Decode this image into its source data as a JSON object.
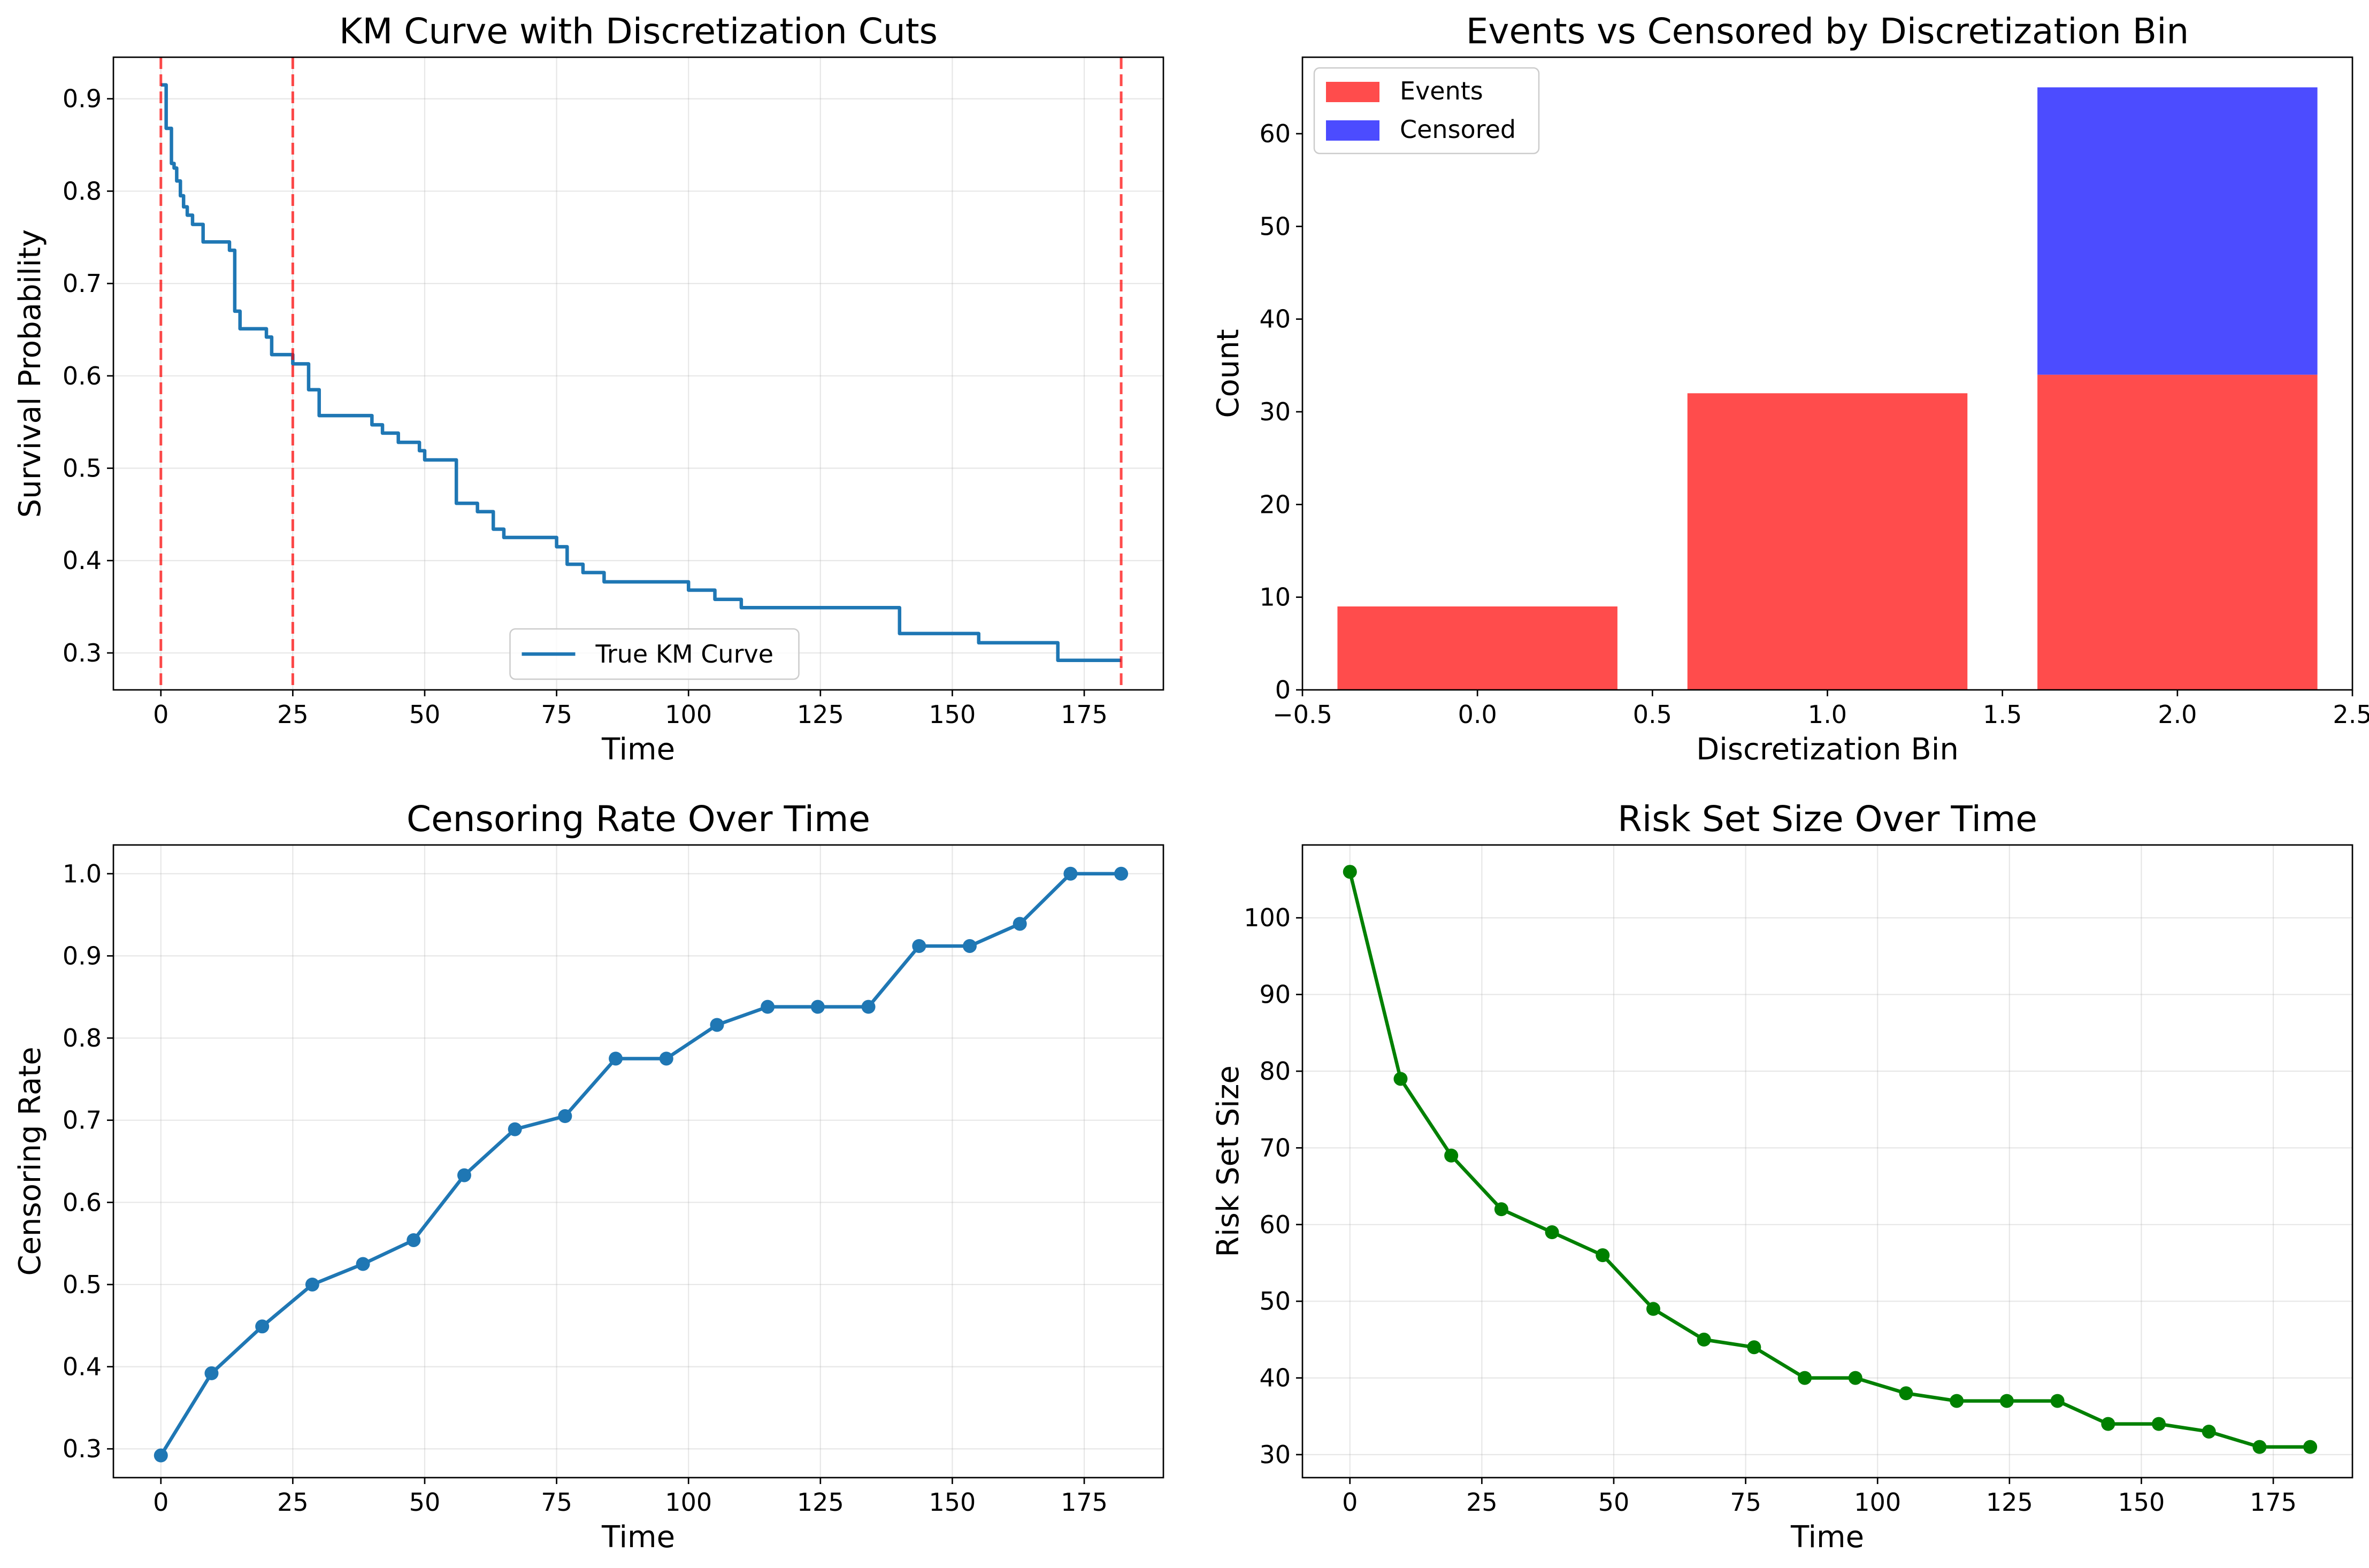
{
  "figure": {
    "background": "#ffffff"
  },
  "chart_data": [
    {
      "type": "line",
      "title": "KM Curve with Discretization Cuts",
      "xlabel": "Time",
      "ylabel": "Survival Probability",
      "xlim": [
        -9,
        190
      ],
      "ylim": [
        0.26,
        0.945
      ],
      "xticks": [
        0,
        25,
        50,
        75,
        100,
        125,
        150,
        175
      ],
      "yticks": [
        0.3,
        0.4,
        0.5,
        0.6,
        0.7,
        0.8,
        0.9
      ],
      "ytick_decimals": 1,
      "grid": true,
      "legend": {
        "placement": "lower-center",
        "entries": [
          "True KM Curve"
        ]
      },
      "series": [
        {
          "name": "True KM Curve",
          "style": "step",
          "color": "#1f77b4",
          "x": [
            0,
            1,
            2,
            2.5,
            3,
            3.7,
            4.3,
            5,
            6,
            8,
            13,
            14,
            15,
            20,
            21,
            25,
            28,
            30,
            40,
            42,
            45,
            49,
            50,
            56,
            60,
            63,
            65,
            75,
            77,
            80,
            84,
            100,
            105,
            110,
            140,
            155,
            170,
            182
          ],
          "y": [
            0.915,
            0.868,
            0.83,
            0.825,
            0.811,
            0.795,
            0.783,
            0.774,
            0.764,
            0.745,
            0.736,
            0.67,
            0.651,
            0.642,
            0.623,
            0.613,
            0.585,
            0.557,
            0.547,
            0.538,
            0.528,
            0.519,
            0.509,
            0.462,
            0.453,
            0.434,
            0.425,
            0.415,
            0.396,
            0.387,
            0.377,
            0.368,
            0.358,
            0.349,
            0.321,
            0.311,
            0.292,
            0.292
          ]
        }
      ],
      "vlines": {
        "x": [
          0,
          25,
          182
        ],
        "color": "#ff0000",
        "style": "dashed"
      }
    },
    {
      "type": "bar",
      "stacked": true,
      "title": "Events vs Censored by Discretization Bin",
      "xlabel": "Discretization Bin",
      "ylabel": "Count",
      "xlim": [
        -0.5,
        2.5
      ],
      "ylim": [
        0,
        68.25
      ],
      "xticks": [
        -0.5,
        0.0,
        0.5,
        1.0,
        1.5,
        2.0,
        2.5
      ],
      "xtick_decimals": 1,
      "yticks": [
        0,
        10,
        20,
        30,
        40,
        50,
        60
      ],
      "bar_width": 0.8,
      "grid": false,
      "legend": {
        "placement": "upper-left",
        "entries": [
          "Events",
          "Censored"
        ]
      },
      "categories": [
        0,
        1,
        2
      ],
      "series": [
        {
          "name": "Events",
          "color": "#ff4c4c",
          "values": [
            9,
            32,
            34
          ]
        },
        {
          "name": "Censored",
          "color": "#4c4cff",
          "values": [
            0,
            0,
            31
          ]
        }
      ]
    },
    {
      "type": "line",
      "title": "Censoring Rate Over Time",
      "xlabel": "Time",
      "ylabel": "Censoring Rate",
      "xlim": [
        -9,
        190
      ],
      "ylim": [
        0.265,
        1.035
      ],
      "xticks": [
        0,
        25,
        50,
        75,
        100,
        125,
        150,
        175
      ],
      "yticks": [
        0.3,
        0.4,
        0.5,
        0.6,
        0.7,
        0.8,
        0.9,
        1.0
      ],
      "ytick_decimals": 1,
      "grid": true,
      "series": [
        {
          "color": "#1f77b4",
          "markers": true,
          "x": [
            0,
            9.6,
            19.2,
            28.7,
            38.3,
            47.9,
            57.5,
            67.1,
            76.6,
            86.2,
            95.8,
            105.4,
            115,
            124.5,
            134.1,
            143.7,
            153.3,
            162.8,
            172.4,
            182
          ],
          "y": [
            0.292,
            0.392,
            0.449,
            0.5,
            0.525,
            0.554,
            0.633,
            0.689,
            0.705,
            0.775,
            0.775,
            0.816,
            0.838,
            0.838,
            0.838,
            0.912,
            0.912,
            0.939,
            1.0,
            1.0
          ]
        }
      ]
    },
    {
      "type": "line",
      "title": "Risk Set Size Over Time",
      "xlabel": "Time",
      "ylabel": "Risk Set Size",
      "xlim": [
        -9,
        190
      ],
      "ylim": [
        27,
        109.5
      ],
      "xticks": [
        0,
        25,
        50,
        75,
        100,
        125,
        150,
        175
      ],
      "yticks": [
        30,
        40,
        50,
        60,
        70,
        80,
        90,
        100
      ],
      "grid": true,
      "series": [
        {
          "color": "#008000",
          "markers": true,
          "x": [
            0,
            9.6,
            19.2,
            28.7,
            38.3,
            47.9,
            57.5,
            67.1,
            76.6,
            86.2,
            95.8,
            105.4,
            115,
            124.5,
            134.1,
            143.7,
            153.3,
            162.8,
            172.4,
            182
          ],
          "y": [
            106,
            79,
            69,
            62,
            59,
            56,
            49,
            45,
            44,
            40,
            40,
            38,
            37,
            37,
            37,
            34,
            34,
            33,
            31,
            31
          ]
        }
      ]
    }
  ]
}
